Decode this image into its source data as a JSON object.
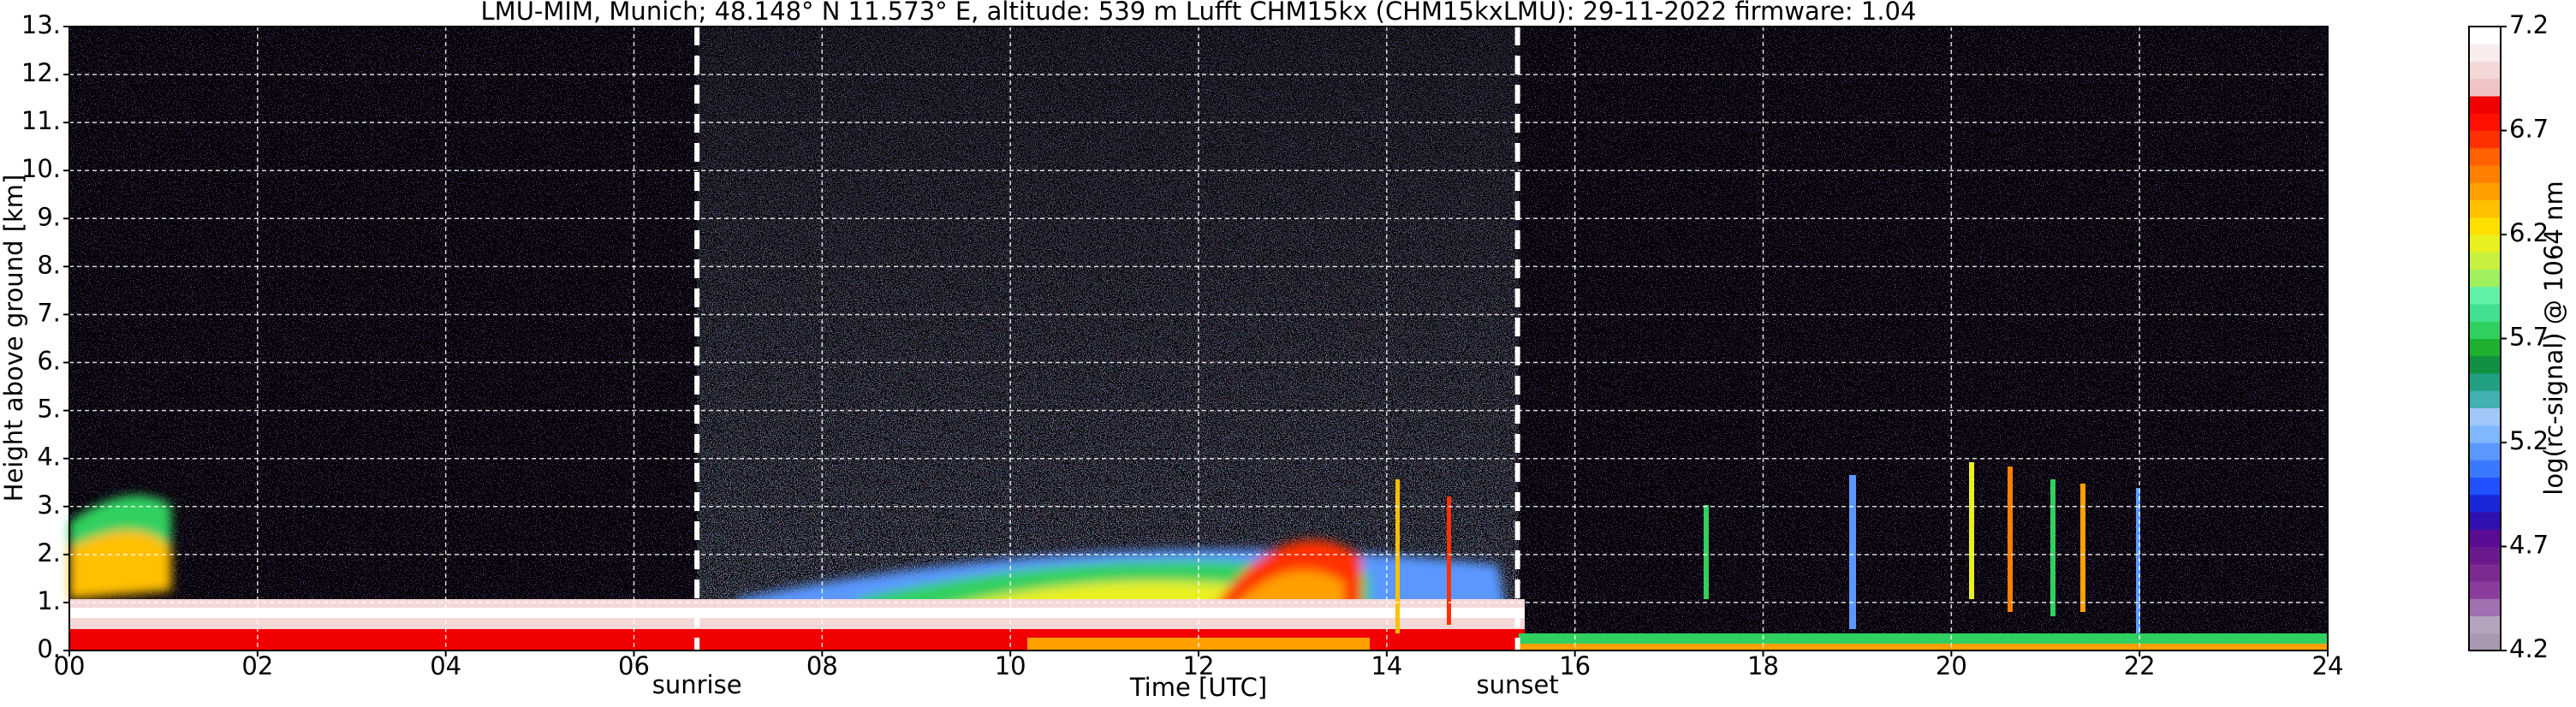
{
  "chart_data": {
    "type": "heatmap",
    "title": "LMU-MIM, Munich; 48.148° N 11.573° E, altitude: 539 m    Lufft CHM15kx (CHM15kxLMU): 29-11-2022    firmware: 1.04",
    "x_label": "Time [UTC]",
    "y_label": "Height above ground [km]",
    "xlim": [
      0,
      24
    ],
    "xticks": [
      {
        "value": 0,
        "label": "00"
      },
      {
        "value": 2,
        "label": "02"
      },
      {
        "value": 4,
        "label": "04"
      },
      {
        "value": 6,
        "label": "06"
      },
      {
        "value": 8,
        "label": "08"
      },
      {
        "value": 10,
        "label": "10"
      },
      {
        "value": 12,
        "label": "12"
      },
      {
        "value": 14,
        "label": "14"
      },
      {
        "value": 16,
        "label": "16"
      },
      {
        "value": 18,
        "label": "18"
      },
      {
        "value": 20,
        "label": "20"
      },
      {
        "value": 22,
        "label": "22"
      },
      {
        "value": 24,
        "label": "24"
      }
    ],
    "ylim": [
      0,
      13
    ],
    "yticks": [
      {
        "value": 0,
        "label": "0."
      },
      {
        "value": 1,
        "label": "1."
      },
      {
        "value": 2,
        "label": "2."
      },
      {
        "value": 3,
        "label": "3."
      },
      {
        "value": 4,
        "label": "4."
      },
      {
        "value": 5,
        "label": "5."
      },
      {
        "value": 6,
        "label": "6."
      },
      {
        "value": 7,
        "label": "7."
      },
      {
        "value": 8,
        "label": "8."
      },
      {
        "value": 9,
        "label": "9."
      },
      {
        "value": 10,
        "label": "10."
      },
      {
        "value": 11,
        "label": "11."
      },
      {
        "value": 12,
        "label": "12."
      },
      {
        "value": 13,
        "label": "13."
      }
    ],
    "grid": true,
    "annotations": [
      {
        "text": "sunrise",
        "x": 6.67
      },
      {
        "text": "sunset",
        "x": 15.39
      }
    ],
    "colorbar": {
      "label": "log(rc-signal) @ 1064 nm",
      "lim": [
        4.2,
        7.2
      ],
      "ticks": [
        4.2,
        4.7,
        5.2,
        5.7,
        6.2,
        6.7,
        7.2
      ],
      "colors": [
        "#a898b0",
        "#b4a4bc",
        "#a070b0",
        "#8a3c9c",
        "#7a2a90",
        "#6a1a8c",
        "#5a0c94",
        "#3010b0",
        "#1828d8",
        "#2050ff",
        "#3a78ff",
        "#5a98ff",
        "#80b8ff",
        "#a0c8f8",
        "#40b0b0",
        "#20a080",
        "#109040",
        "#20b030",
        "#30d060",
        "#40e090",
        "#60f0a8",
        "#a0f060",
        "#c8f040",
        "#e8f020",
        "#ffe000",
        "#ffc000",
        "#ffa000",
        "#ff8000",
        "#ff6000",
        "#ff3000",
        "#ff1000",
        "#f00000",
        "#f0c4c4",
        "#f4d8d8",
        "#f8ecec",
        "#ffffff"
      ]
    }
  }
}
